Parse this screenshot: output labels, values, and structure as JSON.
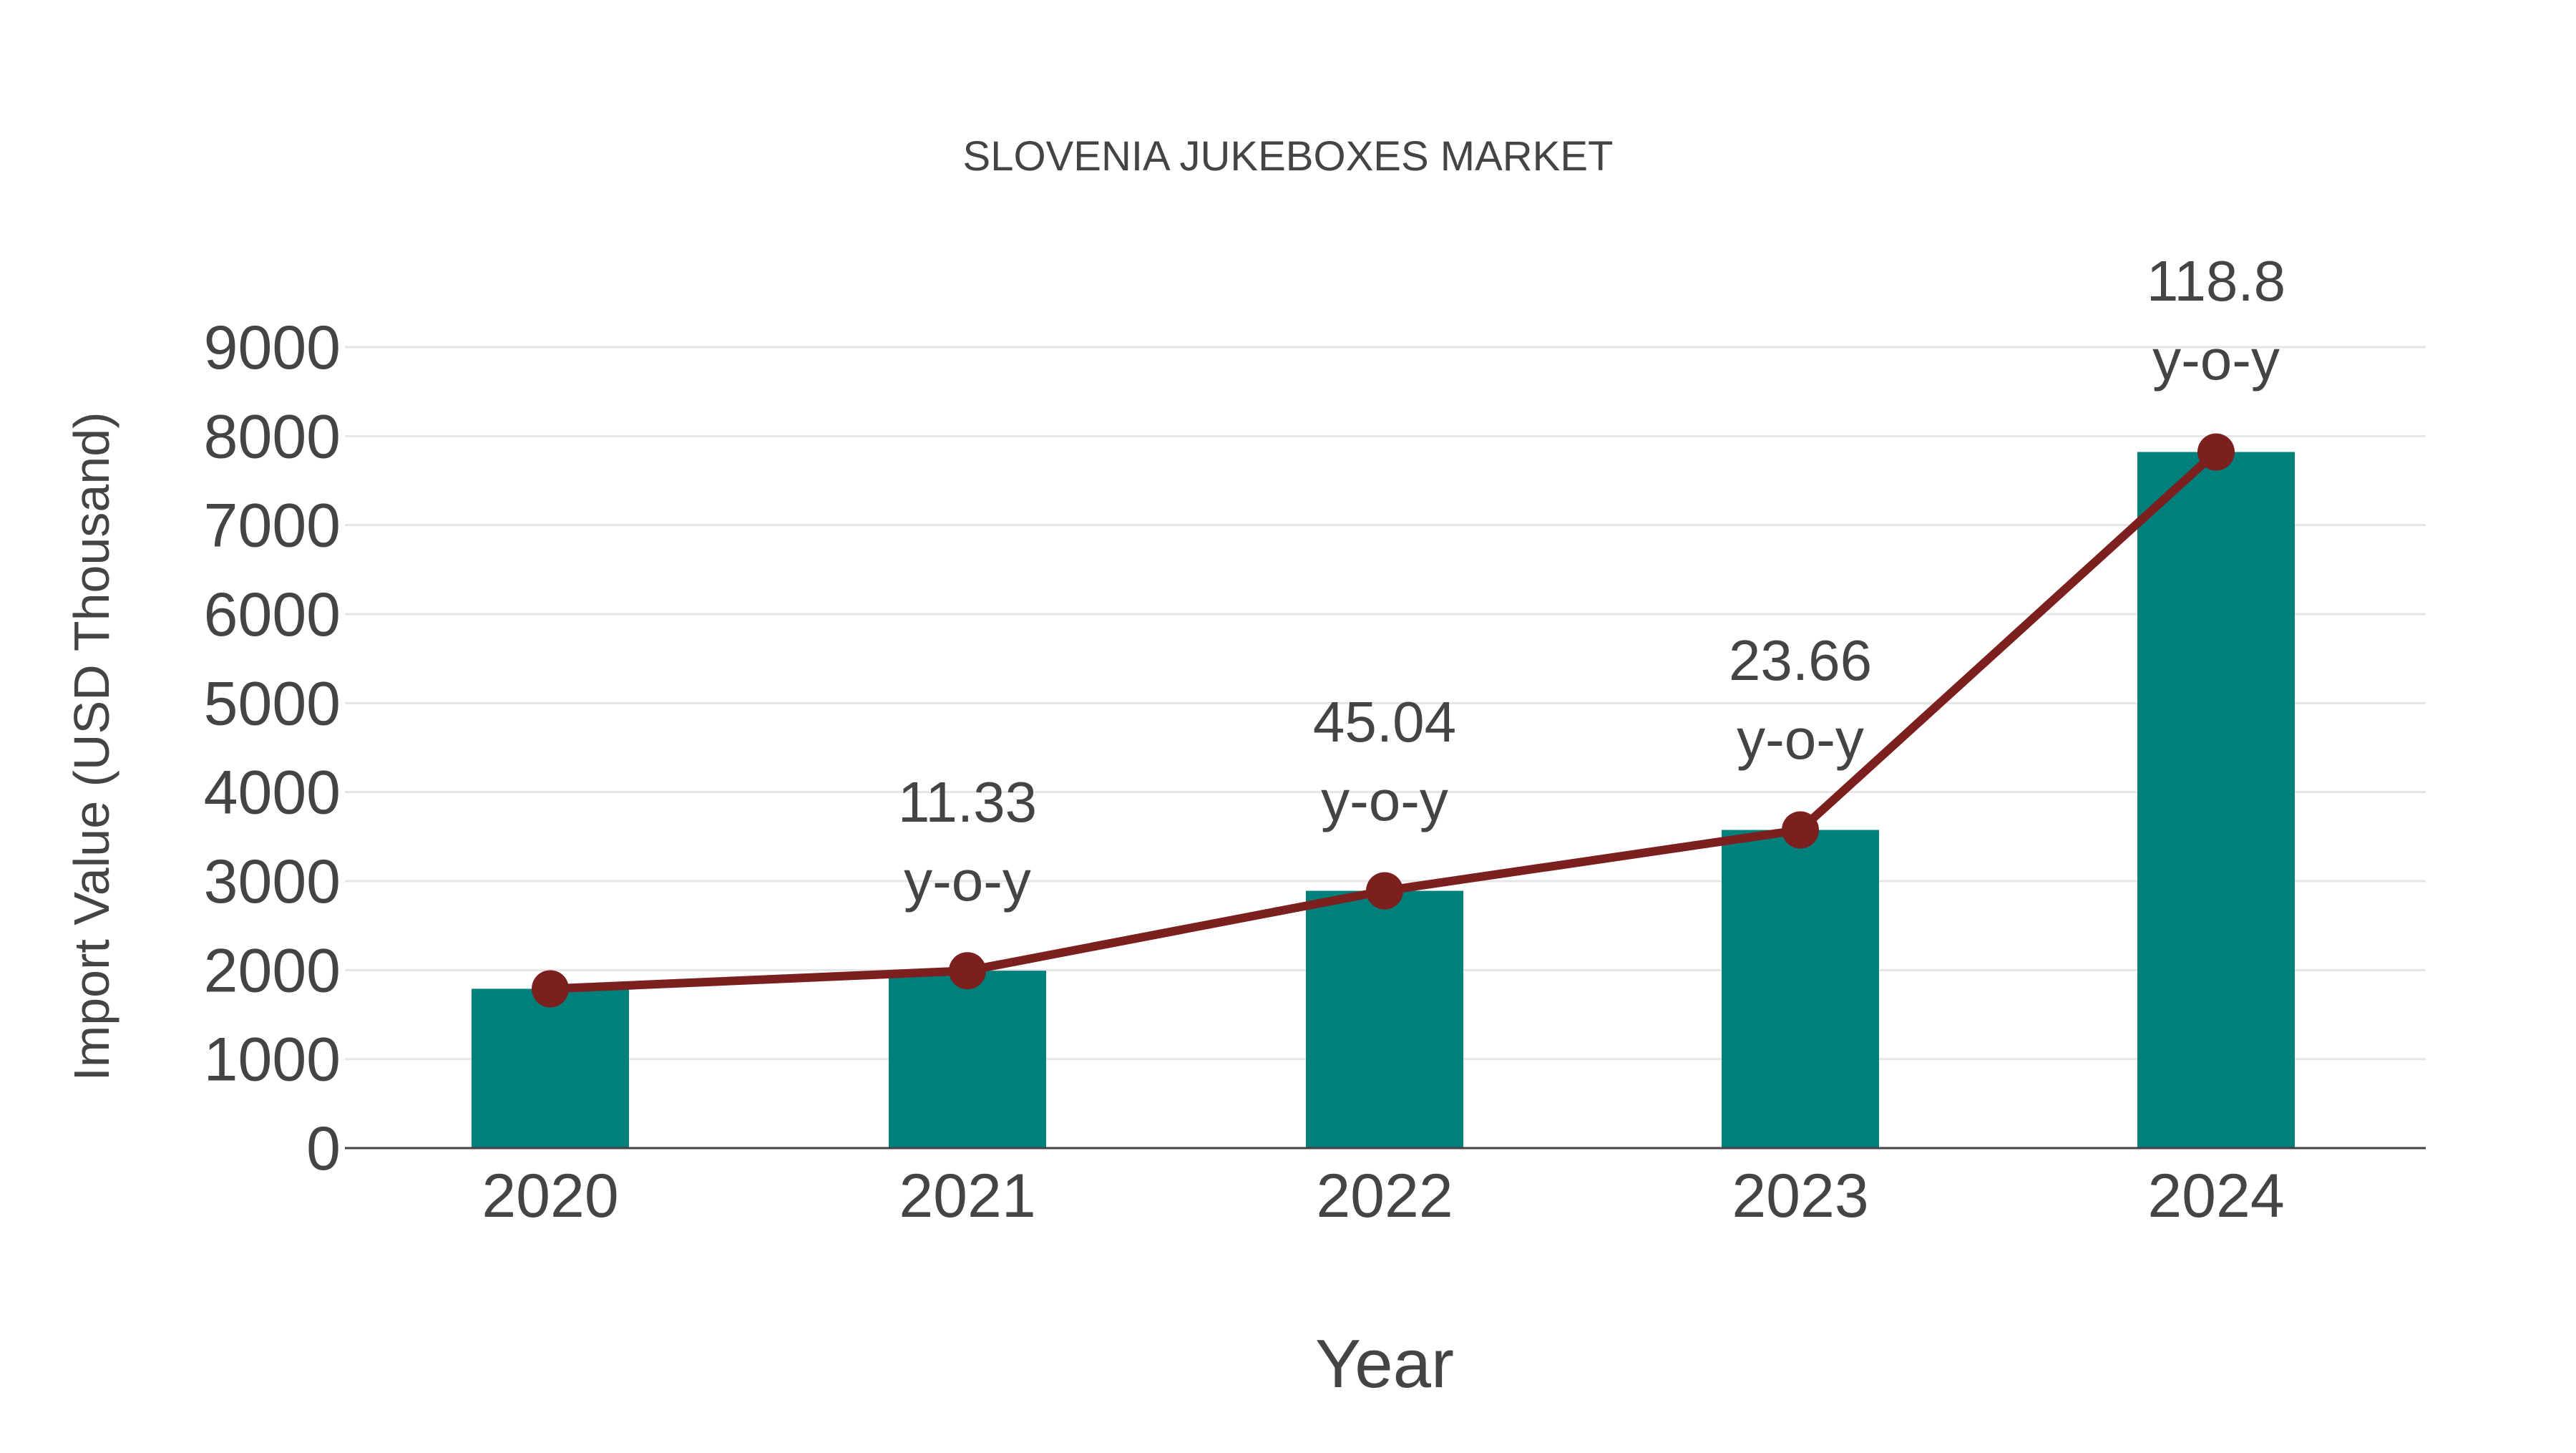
{
  "chart_data": {
    "type": "bar",
    "title": "SLOVENIA JUKEBOXES MARKET",
    "xlabel": "Year",
    "ylabel": "Import Value (USD Thousand)",
    "categories": [
      "2020",
      "2021",
      "2022",
      "2023",
      "2024"
    ],
    "series": [
      {
        "name": "Import Value",
        "type": "bar",
        "color": "#00807c",
        "values": [
          1790,
          1993,
          2891,
          3575,
          7822
        ]
      },
      {
        "name": "Trend",
        "type": "line",
        "color": "#7b1f1f",
        "values": [
          1790,
          1993,
          2891,
          3575,
          7822
        ]
      }
    ],
    "annotations": [
      {
        "category": "2021",
        "value": "11.33",
        "suffix": "y-o-y"
      },
      {
        "category": "2022",
        "value": "45.04",
        "suffix": "y-o-y"
      },
      {
        "category": "2023",
        "value": "23.66",
        "suffix": "y-o-y"
      },
      {
        "category": "2024",
        "value": "118.8",
        "suffix": "y-o-y"
      }
    ],
    "yticks": [
      0,
      1000,
      2000,
      3000,
      4000,
      5000,
      6000,
      7000,
      8000,
      9000
    ],
    "ylim": [
      0,
      9000
    ],
    "grid": true,
    "legend": "none"
  },
  "colors": {
    "bar": "#00807c",
    "line": "#7b1f1f",
    "text": "#444444",
    "grid": "#e6e6e6"
  }
}
